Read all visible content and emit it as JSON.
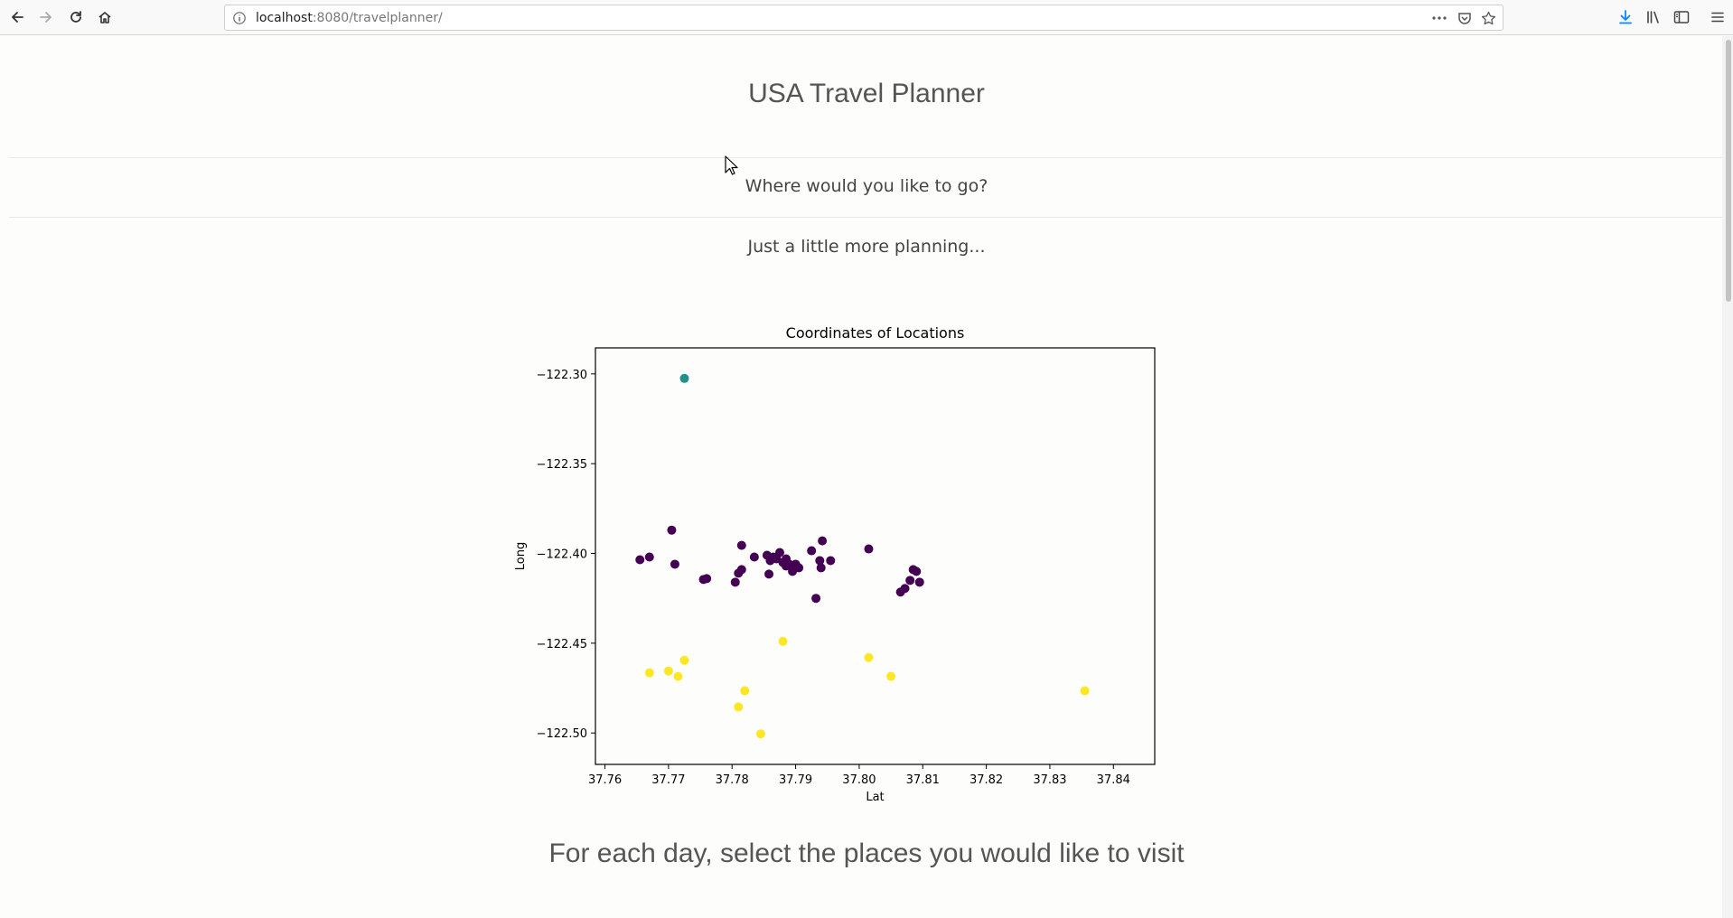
{
  "browser": {
    "url_host": "localhost",
    "url_rest": ":8080/travelplanner/"
  },
  "page": {
    "title": "USA Travel Planner",
    "question": "Where would you like to go?",
    "planning": "Just a little more planning...",
    "day_prompt": "For each day, select the places you would like to visit"
  },
  "chart_data": {
    "type": "scatter",
    "title": "Coordinates of Locations",
    "xlabel": "Lat",
    "ylabel": "Long",
    "xlim": [
      37.7585,
      37.8465
    ],
    "ylim": [
      -122.5175,
      -122.2855
    ],
    "xticks": [
      37.76,
      37.77,
      37.78,
      37.79,
      37.8,
      37.81,
      37.82,
      37.83,
      37.84
    ],
    "xtick_labels": [
      "37.76",
      "37.77",
      "37.78",
      "37.79",
      "37.80",
      "37.81",
      "37.82",
      "37.83",
      "37.84"
    ],
    "yticks": [
      -122.3,
      -122.35,
      -122.4,
      -122.45,
      -122.5
    ],
    "ytick_labels": [
      "−122.30",
      "−122.35",
      "−122.40",
      "−122.45",
      "−122.50"
    ],
    "grid": false,
    "cluster_colors": {
      "purple": "#440154",
      "teal": "#21908d",
      "yellow": "#fde725"
    },
    "series": [
      {
        "color": "#21908d",
        "points": [
          [
            37.7725,
            -122.3025
          ]
        ]
      },
      {
        "color": "#440154",
        "points": [
          [
            37.7655,
            -122.4035
          ],
          [
            37.767,
            -122.402
          ],
          [
            37.7705,
            -122.387
          ],
          [
            37.771,
            -122.406
          ],
          [
            37.7755,
            -122.4145
          ],
          [
            37.776,
            -122.414
          ],
          [
            37.7805,
            -122.416
          ],
          [
            37.781,
            -122.411
          ],
          [
            37.7815,
            -122.3955
          ],
          [
            37.7815,
            -122.409
          ],
          [
            37.7835,
            -122.402
          ],
          [
            37.7855,
            -122.401
          ],
          [
            37.786,
            -122.404
          ],
          [
            37.7858,
            -122.4115
          ],
          [
            37.7865,
            -122.402
          ],
          [
            37.787,
            -122.403
          ],
          [
            37.7875,
            -122.3995
          ],
          [
            37.788,
            -122.405
          ],
          [
            37.7885,
            -122.407
          ],
          [
            37.7885,
            -122.403
          ],
          [
            37.789,
            -122.406
          ],
          [
            37.7895,
            -122.41
          ],
          [
            37.79,
            -122.406
          ],
          [
            37.7905,
            -122.408
          ],
          [
            37.7925,
            -122.3985
          ],
          [
            37.7932,
            -122.425
          ],
          [
            37.7938,
            -122.404
          ],
          [
            37.794,
            -122.408
          ],
          [
            37.7942,
            -122.393
          ],
          [
            37.7955,
            -122.404
          ],
          [
            37.8015,
            -122.3975
          ],
          [
            37.8065,
            -122.4215
          ],
          [
            37.8072,
            -122.4195
          ],
          [
            37.808,
            -122.415
          ],
          [
            37.8085,
            -122.409
          ],
          [
            37.809,
            -122.41
          ],
          [
            37.8095,
            -122.416
          ]
        ]
      },
      {
        "color": "#fde725",
        "points": [
          [
            37.767,
            -122.4665
          ],
          [
            37.77,
            -122.4655
          ],
          [
            37.7715,
            -122.4685
          ],
          [
            37.7725,
            -122.4595
          ],
          [
            37.781,
            -122.4855
          ],
          [
            37.782,
            -122.4765
          ],
          [
            37.7845,
            -122.5005
          ],
          [
            37.788,
            -122.449
          ],
          [
            37.8015,
            -122.458
          ],
          [
            37.805,
            -122.4685
          ],
          [
            37.8355,
            -122.4765
          ]
        ]
      }
    ]
  }
}
